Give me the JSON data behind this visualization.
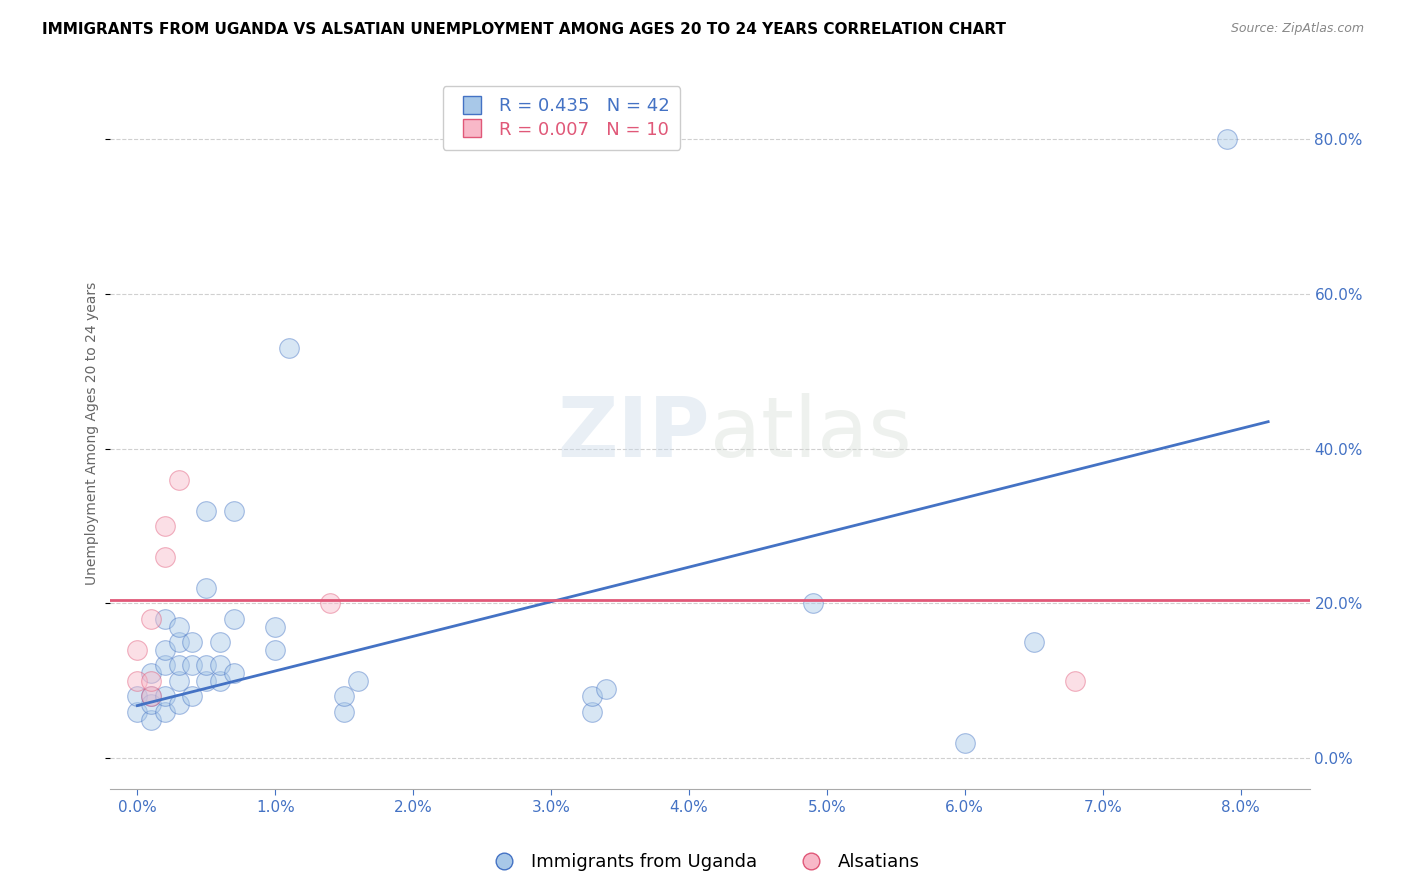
{
  "title": "IMMIGRANTS FROM UGANDA VS ALSATIAN UNEMPLOYMENT AMONG AGES 20 TO 24 YEARS CORRELATION CHART",
  "source": "Source: ZipAtlas.com",
  "ylabel": "Unemployment Among Ages 20 to 24 years",
  "xlabel_ticks": [
    0.0,
    0.01,
    0.02,
    0.03,
    0.04,
    0.05,
    0.06,
    0.07,
    0.08
  ],
  "ylabel_ticks": [
    0.0,
    0.2,
    0.4,
    0.6,
    0.8
  ],
  "xlim": [
    -0.002,
    0.085
  ],
  "ylim": [
    -0.04,
    0.88
  ],
  "blue_R": "R = 0.435",
  "blue_N": "N = 42",
  "pink_R": "R = 0.007",
  "pink_N": "N = 10",
  "legend_label1": "Immigrants from Uganda",
  "legend_label2": "Alsatians",
  "blue_scatter_x": [
    0.0,
    0.0,
    0.001,
    0.001,
    0.001,
    0.001,
    0.002,
    0.002,
    0.002,
    0.002,
    0.002,
    0.003,
    0.003,
    0.003,
    0.003,
    0.003,
    0.004,
    0.004,
    0.004,
    0.005,
    0.005,
    0.005,
    0.005,
    0.006,
    0.006,
    0.006,
    0.007,
    0.007,
    0.007,
    0.01,
    0.01,
    0.011,
    0.015,
    0.015,
    0.016,
    0.033,
    0.033,
    0.034,
    0.049,
    0.06,
    0.065,
    0.079
  ],
  "blue_scatter_y": [
    0.06,
    0.08,
    0.05,
    0.07,
    0.08,
    0.11,
    0.06,
    0.08,
    0.12,
    0.14,
    0.18,
    0.07,
    0.1,
    0.12,
    0.15,
    0.17,
    0.08,
    0.12,
    0.15,
    0.1,
    0.12,
    0.22,
    0.32,
    0.1,
    0.12,
    0.15,
    0.11,
    0.18,
    0.32,
    0.14,
    0.17,
    0.53,
    0.06,
    0.08,
    0.1,
    0.06,
    0.08,
    0.09,
    0.2,
    0.02,
    0.15,
    0.8
  ],
  "pink_scatter_x": [
    0.0,
    0.0,
    0.001,
    0.001,
    0.001,
    0.002,
    0.002,
    0.003,
    0.014,
    0.068
  ],
  "pink_scatter_y": [
    0.1,
    0.14,
    0.08,
    0.1,
    0.18,
    0.26,
    0.3,
    0.36,
    0.2,
    0.1
  ],
  "blue_line_x": [
    0.0,
    0.082
  ],
  "blue_line_y": [
    0.068,
    0.435
  ],
  "pink_line_y": 0.205,
  "scatter_size": 200,
  "scatter_alpha": 0.45,
  "blue_color": "#a8c8e8",
  "pink_color": "#f8b8c8",
  "blue_line_color": "#4472c4",
  "pink_line_color": "#e05878",
  "right_axis_color": "#4472c4",
  "grid_color": "#d0d0d0",
  "title_fontsize": 11,
  "source_fontsize": 9,
  "axis_label_fontsize": 10,
  "tick_fontsize": 11,
  "legend_fontsize": 13
}
